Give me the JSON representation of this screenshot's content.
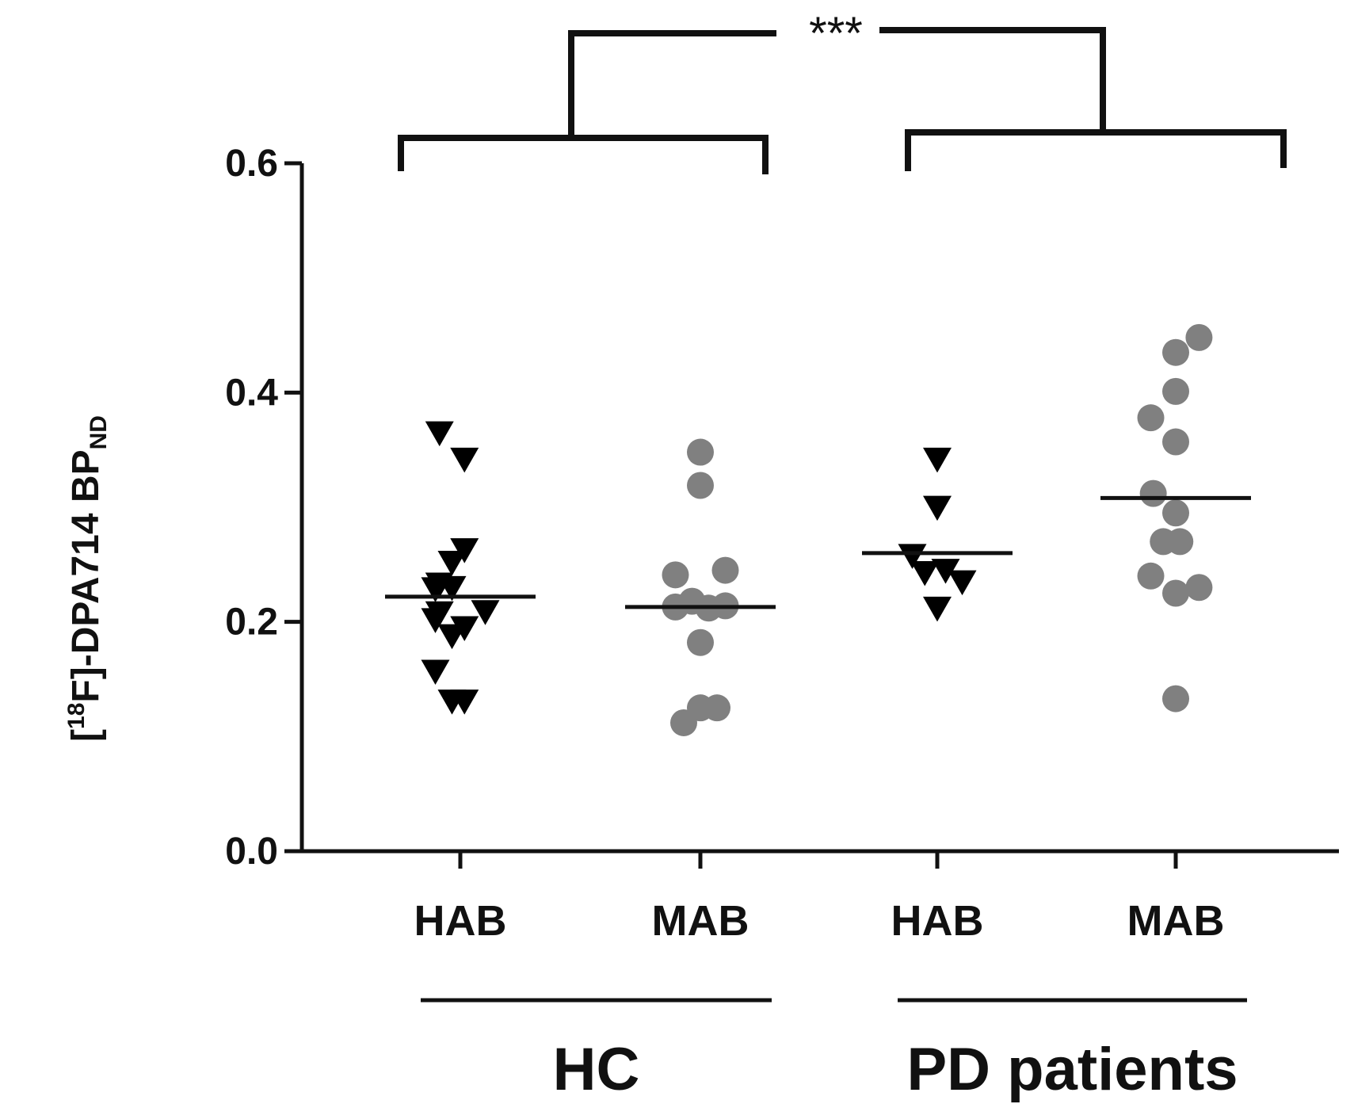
{
  "chart_data": {
    "type": "scatter",
    "ylabel": {
      "bracket_open": "[",
      "superscript": "18",
      "main": "F]-DPA714 BP",
      "subscript": "ND"
    },
    "ylim": [
      0,
      0.6
    ],
    "yticks": [
      "0.0",
      "0.2",
      "0.4",
      "0.6"
    ],
    "categories": [
      "HAB",
      "MAB",
      "HAB",
      "MAB"
    ],
    "groups": [
      {
        "name": "HC",
        "categories": [
          0,
          1
        ]
      },
      {
        "name": "PD patients",
        "categories": [
          2,
          3
        ]
      }
    ],
    "significance": "***",
    "grid": false,
    "colors": {
      "HAB": "#000000",
      "MAB": "#808080"
    },
    "series": [
      {
        "category": 0,
        "marker": "triangle-down",
        "median": 0.222,
        "points": [
          {
            "x": -0.25,
            "y": 0.365
          },
          {
            "x": 0.05,
            "y": 0.342
          },
          {
            "x": 0.05,
            "y": 0.263
          },
          {
            "x": -0.1,
            "y": 0.252
          },
          {
            "x": -0.25,
            "y": 0.233
          },
          {
            "x": -0.3,
            "y": 0.229
          },
          {
            "x": -0.1,
            "y": 0.23
          },
          {
            "x": -0.25,
            "y": 0.208
          },
          {
            "x": 0.3,
            "y": 0.209
          },
          {
            "x": -0.3,
            "y": 0.202
          },
          {
            "x": 0.05,
            "y": 0.195
          },
          {
            "x": -0.1,
            "y": 0.188
          },
          {
            "x": -0.3,
            "y": 0.157
          },
          {
            "x": -0.1,
            "y": 0.131
          },
          {
            "x": 0.05,
            "y": 0.131
          }
        ]
      },
      {
        "category": 1,
        "marker": "circle",
        "median": 0.213,
        "points": [
          {
            "x": 0.0,
            "y": 0.348
          },
          {
            "x": 0.0,
            "y": 0.319
          },
          {
            "x": -0.3,
            "y": 0.241
          },
          {
            "x": 0.3,
            "y": 0.245
          },
          {
            "x": -0.3,
            "y": 0.213
          },
          {
            "x": -0.1,
            "y": 0.218
          },
          {
            "x": 0.1,
            "y": 0.212
          },
          {
            "x": 0.3,
            "y": 0.214
          },
          {
            "x": 0.0,
            "y": 0.182
          },
          {
            "x": -0.2,
            "y": 0.112
          },
          {
            "x": 0.0,
            "y": 0.125
          },
          {
            "x": 0.2,
            "y": 0.125
          }
        ]
      },
      {
        "category": 2,
        "marker": "triangle-down",
        "median": 0.26,
        "points": [
          {
            "x": 0.0,
            "y": 0.342
          },
          {
            "x": 0.0,
            "y": 0.3
          },
          {
            "x": -0.3,
            "y": 0.258
          },
          {
            "x": -0.15,
            "y": 0.243
          },
          {
            "x": 0.1,
            "y": 0.245
          },
          {
            "x": 0.3,
            "y": 0.235
          },
          {
            "x": 0.0,
            "y": 0.212
          }
        ]
      },
      {
        "category": 3,
        "marker": "circle",
        "median": 0.308,
        "points": [
          {
            "x": 0.28,
            "y": 0.448
          },
          {
            "x": 0.0,
            "y": 0.435
          },
          {
            "x": 0.0,
            "y": 0.401
          },
          {
            "x": -0.3,
            "y": 0.378
          },
          {
            "x": 0.0,
            "y": 0.357
          },
          {
            "x": -0.27,
            "y": 0.312
          },
          {
            "x": 0.0,
            "y": 0.295
          },
          {
            "x": -0.15,
            "y": 0.27
          },
          {
            "x": 0.05,
            "y": 0.27
          },
          {
            "x": -0.3,
            "y": 0.24
          },
          {
            "x": 0.28,
            "y": 0.23
          },
          {
            "x": 0.0,
            "y": 0.225
          },
          {
            "x": 0.0,
            "y": 0.133
          }
        ]
      }
    ]
  }
}
